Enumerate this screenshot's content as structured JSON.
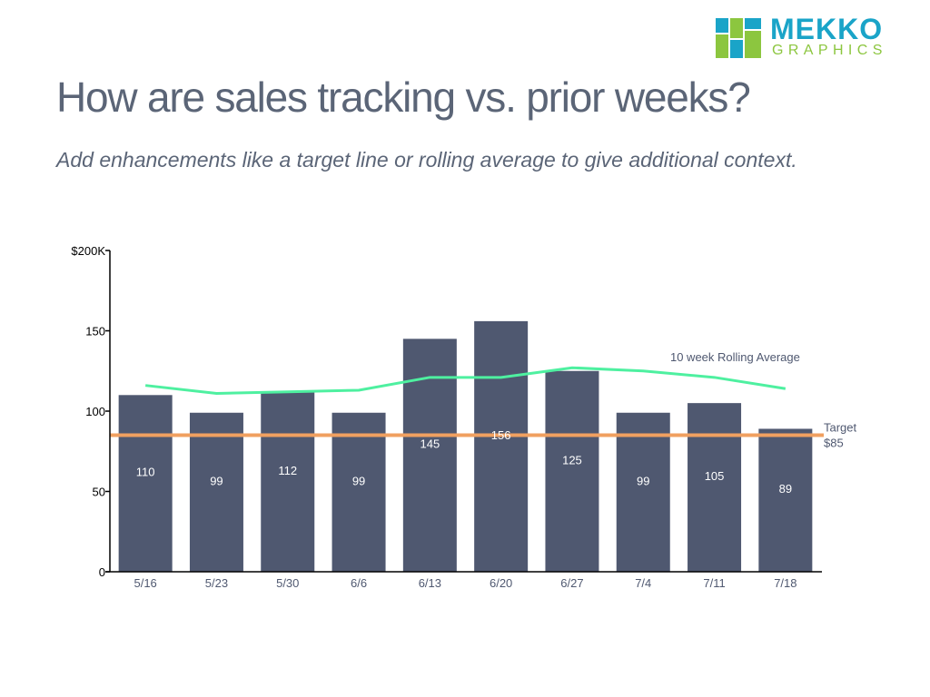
{
  "header": {
    "title": "How are sales tracking vs. prior weeks?",
    "subtitle": "Add enhancements like a target line or rolling average to give additional context."
  },
  "logo": {
    "word1": "MEKKO",
    "word2": "GRAPHICS",
    "colors": [
      "#1aa4c8",
      "#8cc63f",
      "#1aa4c8",
      "#8cc63f",
      "#1aa4c8",
      "#8cc63f"
    ]
  },
  "chart_data": {
    "type": "bar",
    "categories": [
      "5/16",
      "5/23",
      "5/30",
      "6/6",
      "6/13",
      "6/20",
      "6/27",
      "7/4",
      "7/11",
      "7/18"
    ],
    "values": [
      110,
      99,
      112,
      99,
      145,
      156,
      125,
      99,
      105,
      89
    ],
    "data_labels": [
      "110",
      "99",
      "112",
      "99",
      "145",
      "156",
      "125",
      "99",
      "105",
      "89"
    ],
    "rolling_average": {
      "name": "10 week Rolling Average",
      "values": [
        116,
        111,
        112,
        113,
        121,
        121,
        127,
        125,
        121,
        114
      ]
    },
    "target": {
      "label_line1": "Target",
      "label_line2": "$85",
      "value": 85
    },
    "yticks": [
      0,
      50,
      100,
      150,
      200
    ],
    "ytick_labels": [
      "0",
      "50",
      "100",
      "150",
      "$200K"
    ],
    "ylim": [
      0,
      200
    ],
    "grid": false,
    "colors": {
      "bar": "#4f5870",
      "rolling_average": "#4ef0a0",
      "target": "#f0a060",
      "axis": "#000000",
      "text": "#4f5870"
    }
  }
}
